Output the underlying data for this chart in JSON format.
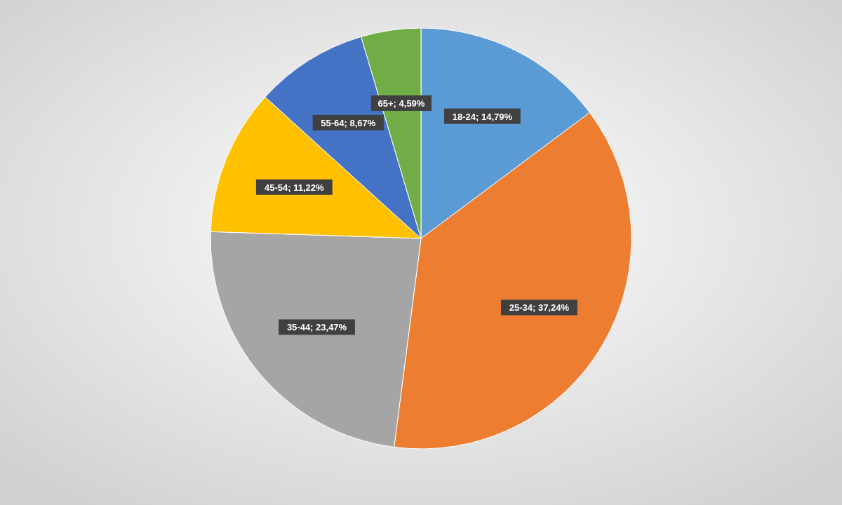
{
  "chart_data": {
    "type": "pie",
    "categories": [
      "18-24",
      "25-34",
      "35-44",
      "45-54",
      "55-64",
      "65+"
    ],
    "values": [
      14.79,
      37.24,
      23.47,
      11.22,
      8.67,
      4.59
    ],
    "colors": [
      "#5b9bd5",
      "#ed7d31",
      "#a5a5a5",
      "#ffc000",
      "#4472c4",
      "#70ad47"
    ],
    "value_labels": [
      "14,79%",
      "37,24%",
      "23,47%",
      "11,22%",
      "8,67%",
      "4,59%"
    ]
  }
}
